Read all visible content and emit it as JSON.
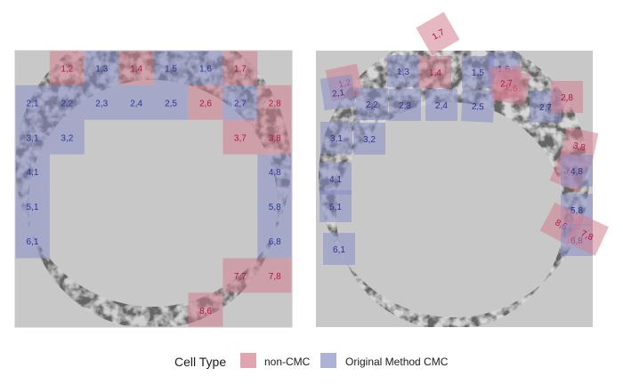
{
  "chart_data": [
    {
      "type": "heatmap",
      "grid_size": [
        8,
        8
      ],
      "cells": [
        {
          "label": "1,2",
          "row": 1,
          "col": 2,
          "type": "non-CMC"
        },
        {
          "label": "1,3",
          "row": 1,
          "col": 3,
          "type": "Original Method CMC"
        },
        {
          "label": "1,4",
          "row": 1,
          "col": 4,
          "type": "non-CMC"
        },
        {
          "label": "1,5",
          "row": 1,
          "col": 5,
          "type": "Original Method CMC"
        },
        {
          "label": "1,6",
          "row": 1,
          "col": 6,
          "type": "Original Method CMC"
        },
        {
          "label": "1,7",
          "row": 1,
          "col": 7,
          "type": "non-CMC"
        },
        {
          "label": "2,1",
          "row": 2,
          "col": 1,
          "type": "Original Method CMC"
        },
        {
          "label": "2,2",
          "row": 2,
          "col": 2,
          "type": "Original Method CMC"
        },
        {
          "label": "2,3",
          "row": 2,
          "col": 3,
          "type": "Original Method CMC"
        },
        {
          "label": "2,4",
          "row": 2,
          "col": 4,
          "type": "Original Method CMC"
        },
        {
          "label": "2,5",
          "row": 2,
          "col": 5,
          "type": "Original Method CMC"
        },
        {
          "label": "2,6",
          "row": 2,
          "col": 6,
          "type": "non-CMC"
        },
        {
          "label": "2,7",
          "row": 2,
          "col": 7,
          "type": "Original Method CMC"
        },
        {
          "label": "2,8",
          "row": 2,
          "col": 8,
          "type": "non-CMC"
        },
        {
          "label": "3,1",
          "row": 3,
          "col": 1,
          "type": "Original Method CMC"
        },
        {
          "label": "3,2",
          "row": 3,
          "col": 2,
          "type": "Original Method CMC"
        },
        {
          "label": "3,7",
          "row": 3,
          "col": 7,
          "type": "non-CMC"
        },
        {
          "label": "3,8",
          "row": 3,
          "col": 8,
          "type": "non-CMC"
        },
        {
          "label": "4,1",
          "row": 4,
          "col": 1,
          "type": "Original Method CMC"
        },
        {
          "label": "4,8",
          "row": 4,
          "col": 8,
          "type": "Original Method CMC"
        },
        {
          "label": "5,1",
          "row": 5,
          "col": 1,
          "type": "Original Method CMC"
        },
        {
          "label": "5,8",
          "row": 5,
          "col": 8,
          "type": "Original Method CMC"
        },
        {
          "label": "6,1",
          "row": 6,
          "col": 1,
          "type": "Original Method CMC"
        },
        {
          "label": "6,8",
          "row": 6,
          "col": 8,
          "type": "Original Method CMC"
        },
        {
          "label": "7,7",
          "row": 7,
          "col": 7,
          "type": "non-CMC"
        },
        {
          "label": "7,8",
          "row": 7,
          "col": 8,
          "type": "non-CMC"
        },
        {
          "label": "8,6",
          "row": 8,
          "col": 6,
          "type": "non-CMC"
        }
      ]
    },
    {
      "type": "heatmap",
      "grid_size": [
        8,
        8
      ],
      "cells": [
        {
          "label": "1,2",
          "type": "non-CMC"
        },
        {
          "label": "1,3",
          "type": "Original Method CMC"
        },
        {
          "label": "1,4",
          "type": "non-CMC"
        },
        {
          "label": "1,5",
          "type": "Original Method CMC"
        },
        {
          "label": "1,6",
          "type": "Original Method CMC"
        },
        {
          "label": "1,7",
          "type": "non-CMC"
        },
        {
          "label": "2,1",
          "type": "Original Method CMC"
        },
        {
          "label": "2,2",
          "type": "Original Method CMC"
        },
        {
          "label": "2,3",
          "type": "Original Method CMC"
        },
        {
          "label": "2,4",
          "type": "Original Method CMC"
        },
        {
          "label": "2,5",
          "type": "Original Method CMC"
        },
        {
          "label": "2,6",
          "type": "non-CMC"
        },
        {
          "label": "2,7",
          "type": "non-CMC"
        },
        {
          "label": "2,7",
          "type": "Original Method CMC"
        },
        {
          "label": "2,8",
          "type": "non-CMC"
        },
        {
          "label": "3,1",
          "type": "Original Method CMC"
        },
        {
          "label": "3,2",
          "type": "Original Method CMC"
        },
        {
          "label": "3,8",
          "type": "non-CMC"
        },
        {
          "label": "3,7",
          "type": "non-CMC"
        },
        {
          "label": "4,1",
          "type": "Original Method CMC"
        },
        {
          "label": "4,8",
          "type": "Original Method CMC"
        },
        {
          "label": "5,1",
          "type": "Original Method CMC"
        },
        {
          "label": "5,8",
          "type": "Original Method CMC"
        },
        {
          "label": "8,6",
          "type": "non-CMC"
        },
        {
          "label": "6,1",
          "type": "Original Method CMC"
        },
        {
          "label": "6,8",
          "type": "Original Method CMC"
        },
        {
          "label": "7,8",
          "type": "non-CMC"
        }
      ]
    }
  ],
  "legend": {
    "title": "Cell Type",
    "items": [
      {
        "label": "non-CMC",
        "color": "#d27f8f"
      },
      {
        "label": "Original Method CMC",
        "color": "#8a8ec6"
      }
    ]
  },
  "colors": {
    "panel_background": "#c8c8c8",
    "ring_dark": "#3a3a3a",
    "ring_light": "#f2f2f2",
    "non_cmc_fill": "#d27f8f",
    "non_cmc_text": "#b4123c",
    "cmc_fill": "#8a8ec6",
    "cmc_text": "#2a3598"
  }
}
